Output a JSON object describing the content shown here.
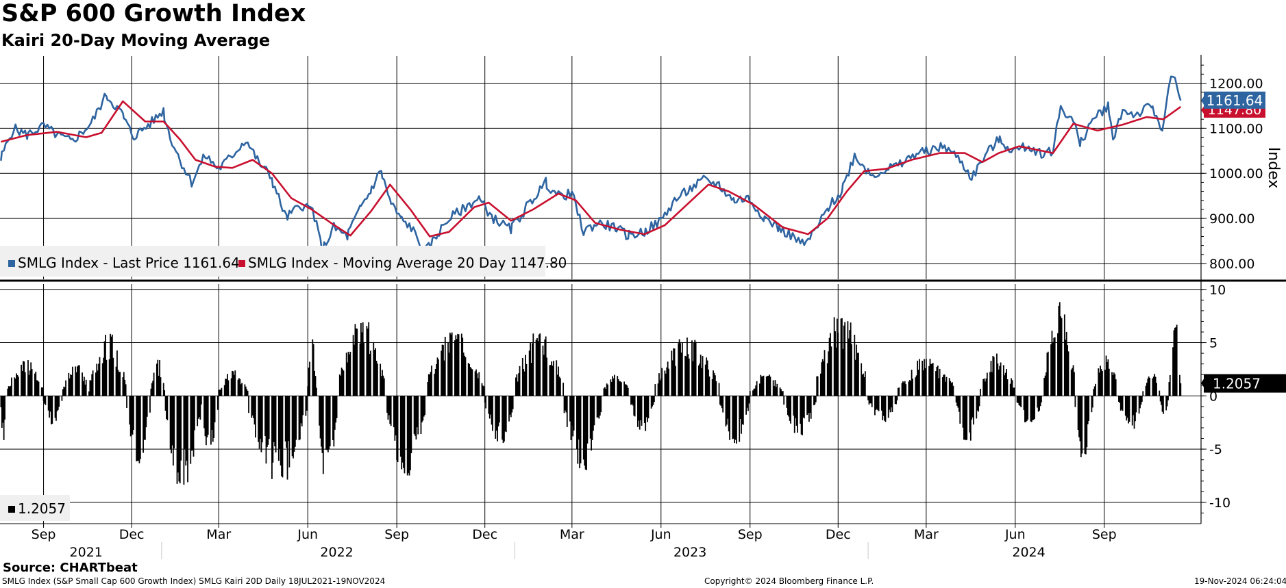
{
  "header": {
    "title": "S&P 600 Growth Index",
    "subtitle": "Kairi 20-Day Moving Average"
  },
  "footer": {
    "source": "Source: CHARTbeat",
    "description": "SMLG Index (S&P Small Cap 600 Growth Index) SMLG Kairi 20D  Daily 18JUL2021-19NOV2024",
    "copyright": "Copyright© 2024 Bloomberg Finance L.P.",
    "timestamp": "19-Nov-2024 06:24:04"
  },
  "colors": {
    "price": "#2e64a0",
    "moving_average": "#c8102e",
    "kairi": "#000000",
    "grid": "#000000",
    "legend_bg": "#f0f0f0"
  },
  "legend": {
    "top_items": [
      {
        "label": "SMLG Index - Last Price 1161.64"
      },
      {
        "label": "SMLG Index - Moving Average 20 Day 1147.80"
      }
    ],
    "bottom_items": [
      {
        "label": "1.2057"
      }
    ]
  },
  "chart_data": [
    {
      "type": "line",
      "title": "S&P 600 Growth Index",
      "ylabel": "Index",
      "ylim": [
        765,
        1260
      ],
      "yticks": [
        "800.00",
        "900.00",
        "1000.00",
        "1100.00",
        "1200.00"
      ],
      "xlim": [
        "2021-07-18",
        "2024-12-10"
      ],
      "series": [
        {
          "name": "SMLG Index - Last Price",
          "last_value": "1161.64",
          "points": [
            [
              "2021-07-19",
              1030
            ],
            [
              "2021-08-01",
              1100
            ],
            [
              "2021-08-15",
              1085
            ],
            [
              "2021-09-01",
              1105
            ],
            [
              "2021-09-15",
              1085
            ],
            [
              "2021-10-01",
              1070
            ],
            [
              "2021-10-20",
              1110
            ],
            [
              "2021-11-05",
              1175
            ],
            [
              "2021-11-22",
              1130
            ],
            [
              "2021-12-03",
              1080
            ],
            [
              "2021-12-20",
              1110
            ],
            [
              "2022-01-03",
              1140
            ],
            [
              "2022-01-10",
              1080
            ],
            [
              "2022-01-20",
              1030
            ],
            [
              "2022-02-01",
              980
            ],
            [
              "2022-02-15",
              1040
            ],
            [
              "2022-03-01",
              1010
            ],
            [
              "2022-03-15",
              1040
            ],
            [
              "2022-03-29",
              1075
            ],
            [
              "2022-04-10",
              1030
            ],
            [
              "2022-04-25",
              990
            ],
            [
              "2022-05-10",
              900
            ],
            [
              "2022-05-25",
              930
            ],
            [
              "2022-06-06",
              920
            ],
            [
              "2022-06-16",
              830
            ],
            [
              "2022-06-28",
              880
            ],
            [
              "2022-07-12",
              860
            ],
            [
              "2022-07-25",
              920
            ],
            [
              "2022-08-05",
              960
            ],
            [
              "2022-08-16",
              1008
            ],
            [
              "2022-08-25",
              940
            ],
            [
              "2022-09-05",
              900
            ],
            [
              "2022-09-16",
              880
            ],
            [
              "2022-09-30",
              825
            ],
            [
              "2022-10-12",
              860
            ],
            [
              "2022-10-25",
              900
            ],
            [
              "2022-11-08",
              920
            ],
            [
              "2022-11-25",
              945
            ],
            [
              "2022-12-10",
              900
            ],
            [
              "2022-12-28",
              875
            ],
            [
              "2023-01-12",
              920
            ],
            [
              "2023-02-02",
              980
            ],
            [
              "2023-02-15",
              950
            ],
            [
              "2023-03-01",
              955
            ],
            [
              "2023-03-13",
              870
            ],
            [
              "2023-03-28",
              890
            ],
            [
              "2023-04-15",
              880
            ],
            [
              "2023-04-28",
              862
            ],
            [
              "2023-05-15",
              870
            ],
            [
              "2023-06-01",
              895
            ],
            [
              "2023-06-15",
              940
            ],
            [
              "2023-07-01",
              965
            ],
            [
              "2023-07-15",
              985
            ],
            [
              "2023-07-31",
              975
            ],
            [
              "2023-08-15",
              940
            ],
            [
              "2023-08-30",
              945
            ],
            [
              "2023-09-15",
              905
            ],
            [
              "2023-09-30",
              880
            ],
            [
              "2023-10-15",
              860
            ],
            [
              "2023-10-27",
              840
            ],
            [
              "2023-11-08",
              875
            ],
            [
              "2023-11-20",
              920
            ],
            [
              "2023-12-05",
              960
            ],
            [
              "2023-12-18",
              1040
            ],
            [
              "2024-01-05",
              995
            ],
            [
              "2024-01-20",
              1010
            ],
            [
              "2024-02-05",
              1020
            ],
            [
              "2024-02-20",
              1045
            ],
            [
              "2024-03-05",
              1050
            ],
            [
              "2024-03-20",
              1060
            ],
            [
              "2024-04-05",
              1030
            ],
            [
              "2024-04-17",
              990
            ],
            [
              "2024-05-01",
              1040
            ],
            [
              "2024-05-15",
              1075
            ],
            [
              "2024-05-30",
              1050
            ],
            [
              "2024-06-15",
              1060
            ],
            [
              "2024-06-28",
              1045
            ],
            [
              "2024-07-10",
              1050
            ],
            [
              "2024-07-18",
              1150
            ],
            [
              "2024-08-02",
              1110
            ],
            [
              "2024-08-07",
              1060
            ],
            [
              "2024-08-20",
              1120
            ],
            [
              "2024-09-05",
              1150
            ],
            [
              "2024-09-10",
              1080
            ],
            [
              "2024-09-20",
              1140
            ],
            [
              "2024-10-05",
              1130
            ],
            [
              "2024-10-20",
              1150
            ],
            [
              "2024-10-31",
              1100
            ],
            [
              "2024-11-06",
              1180
            ],
            [
              "2024-11-11",
              1218
            ],
            [
              "2024-11-15",
              1185
            ],
            [
              "2024-11-19",
              1161.64
            ]
          ]
        },
        {
          "name": "SMLG Index - Moving Average 20 Day",
          "last_value": "1147.80",
          "points": [
            [
              "2021-07-19",
              1070
            ],
            [
              "2021-08-15",
              1085
            ],
            [
              "2021-09-15",
              1092
            ],
            [
              "2021-10-15",
              1080
            ],
            [
              "2021-10-31",
              1090
            ],
            [
              "2021-11-22",
              1160
            ],
            [
              "2021-12-15",
              1115
            ],
            [
              "2022-01-03",
              1115
            ],
            [
              "2022-01-20",
              1075
            ],
            [
              "2022-02-05",
              1030
            ],
            [
              "2022-02-25",
              1015
            ],
            [
              "2022-03-15",
              1012
            ],
            [
              "2022-04-05",
              1030
            ],
            [
              "2022-04-25",
              1000
            ],
            [
              "2022-05-15",
              945
            ],
            [
              "2022-06-05",
              920
            ],
            [
              "2022-06-25",
              890
            ],
            [
              "2022-07-15",
              862
            ],
            [
              "2022-08-05",
              915
            ],
            [
              "2022-08-25",
              975
            ],
            [
              "2022-09-15",
              920
            ],
            [
              "2022-10-05",
              860
            ],
            [
              "2022-10-25",
              870
            ],
            [
              "2022-11-20",
              925
            ],
            [
              "2022-12-05",
              935
            ],
            [
              "2022-12-28",
              895
            ],
            [
              "2023-01-20",
              920
            ],
            [
              "2023-02-15",
              955
            ],
            [
              "2023-03-05",
              940
            ],
            [
              "2023-03-25",
              890
            ],
            [
              "2023-04-20",
              875
            ],
            [
              "2023-05-15",
              865
            ],
            [
              "2023-06-05",
              885
            ],
            [
              "2023-06-25",
              925
            ],
            [
              "2023-07-20",
              975
            ],
            [
              "2023-08-10",
              960
            ],
            [
              "2023-09-05",
              930
            ],
            [
              "2023-10-05",
              880
            ],
            [
              "2023-10-31",
              865
            ],
            [
              "2023-11-20",
              900
            ],
            [
              "2023-12-10",
              960
            ],
            [
              "2023-12-28",
              1005
            ],
            [
              "2024-01-20",
              1010
            ],
            [
              "2024-02-15",
              1030
            ],
            [
              "2024-03-15",
              1045
            ],
            [
              "2024-04-10",
              1045
            ],
            [
              "2024-04-28",
              1025
            ],
            [
              "2024-05-15",
              1045
            ],
            [
              "2024-06-05",
              1060
            ],
            [
              "2024-07-10",
              1045
            ],
            [
              "2024-07-31",
              1110
            ],
            [
              "2024-08-25",
              1095
            ],
            [
              "2024-09-20",
              1108
            ],
            [
              "2024-10-15",
              1125
            ],
            [
              "2024-11-01",
              1120
            ],
            [
              "2024-11-19",
              1147.8
            ]
          ]
        }
      ]
    },
    {
      "type": "bar",
      "title": "Kairi 20-Day Moving Average",
      "ylim": [
        -12,
        10.5
      ],
      "yticks": [
        "10",
        "5",
        "0",
        "-5",
        "-10"
      ],
      "last_value": "1.2057",
      "segments": [
        {
          "start": "2021-07-19",
          "end": "2021-07-24",
          "peak": -4.5
        },
        {
          "start": "2021-07-26",
          "end": "2021-08-31",
          "peak": 3.5
        },
        {
          "start": "2021-09-01",
          "end": "2021-09-20",
          "peak": -2.7
        },
        {
          "start": "2021-09-21",
          "end": "2021-10-18",
          "peak": 3.0
        },
        {
          "start": "2021-10-19",
          "end": "2021-11-25",
          "peak": 6.0
        },
        {
          "start": "2021-11-26",
          "end": "2021-12-20",
          "peak": -6.5
        },
        {
          "start": "2021-12-21",
          "end": "2022-01-04",
          "peak": 3.5
        },
        {
          "start": "2022-01-05",
          "end": "2022-02-10",
          "peak": -9.0
        },
        {
          "start": "2022-02-11",
          "end": "2022-02-28",
          "peak": -5.5
        },
        {
          "start": "2022-03-01",
          "end": "2022-03-31",
          "peak": 2.5
        },
        {
          "start": "2022-04-01",
          "end": "2022-05-31",
          "peak": -8.0
        },
        {
          "start": "2022-06-01",
          "end": "2022-06-10",
          "peak": 5.5
        },
        {
          "start": "2022-06-11",
          "end": "2022-07-01",
          "peak": -9.0
        },
        {
          "start": "2022-07-02",
          "end": "2022-08-20",
          "peak": 7.0
        },
        {
          "start": "2022-08-21",
          "end": "2022-09-30",
          "peak": -7.5
        },
        {
          "start": "2022-10-01",
          "end": "2022-11-30",
          "peak": 6.0
        },
        {
          "start": "2022-12-01",
          "end": "2022-12-31",
          "peak": -4.5
        },
        {
          "start": "2023-01-01",
          "end": "2023-02-20",
          "peak": 6.0
        },
        {
          "start": "2023-02-21",
          "end": "2023-03-31",
          "peak": -7.0
        },
        {
          "start": "2023-04-01",
          "end": "2023-04-30",
          "peak": 2.0
        },
        {
          "start": "2023-05-01",
          "end": "2023-05-25",
          "peak": -3.5
        },
        {
          "start": "2023-05-26",
          "end": "2023-07-31",
          "peak": 5.5
        },
        {
          "start": "2023-08-01",
          "end": "2023-08-31",
          "peak": -4.5
        },
        {
          "start": "2023-09-01",
          "end": "2023-10-05",
          "peak": 2.0
        },
        {
          "start": "2023-10-06",
          "end": "2023-11-08",
          "peak": -3.8
        },
        {
          "start": "2023-11-09",
          "end": "2023-12-31",
          "peak": 7.5
        },
        {
          "start": "2024-01-01",
          "end": "2024-01-31",
          "peak": -2.5
        },
        {
          "start": "2024-02-01",
          "end": "2024-03-31",
          "peak": 3.5
        },
        {
          "start": "2024-04-01",
          "end": "2024-04-25",
          "peak": -4.3
        },
        {
          "start": "2024-04-26",
          "end": "2024-05-31",
          "peak": 4.0
        },
        {
          "start": "2024-06-01",
          "end": "2024-06-30",
          "peak": -2.5
        },
        {
          "start": "2024-07-01",
          "end": "2024-08-01",
          "peak": 9.0
        },
        {
          "start": "2024-08-02",
          "end": "2024-08-20",
          "peak": -5.8
        },
        {
          "start": "2024-08-21",
          "end": "2024-09-15",
          "peak": 4.0
        },
        {
          "start": "2024-09-16",
          "end": "2024-10-10",
          "peak": -3.2
        },
        {
          "start": "2024-10-11",
          "end": "2024-10-28",
          "peak": 2.5
        },
        {
          "start": "2024-10-29",
          "end": "2024-11-06",
          "peak": -2.4
        },
        {
          "start": "2024-11-07",
          "end": "2024-11-19",
          "peak": 6.8
        }
      ]
    }
  ],
  "x_axis": {
    "months": [
      {
        "label": "Sep",
        "date": "2021-09-01"
      },
      {
        "label": "Dec",
        "date": "2021-12-01"
      },
      {
        "label": "Mar",
        "date": "2022-03-01"
      },
      {
        "label": "Jun",
        "date": "2022-06-01"
      },
      {
        "label": "Sep",
        "date": "2022-09-01"
      },
      {
        "label": "Dec",
        "date": "2022-12-01"
      },
      {
        "label": "Mar",
        "date": "2023-03-01"
      },
      {
        "label": "Jun",
        "date": "2023-06-01"
      },
      {
        "label": "Sep",
        "date": "2023-09-01"
      },
      {
        "label": "Dec",
        "date": "2023-12-01"
      },
      {
        "label": "Mar",
        "date": "2024-03-01"
      },
      {
        "label": "Jun",
        "date": "2024-06-01"
      },
      {
        "label": "Sep",
        "date": "2024-09-01"
      }
    ],
    "years": [
      {
        "label": "2021",
        "date": "2021-10-15"
      },
      {
        "label": "2022",
        "date": "2022-07-01"
      },
      {
        "label": "2023",
        "date": "2023-07-01"
      },
      {
        "label": "2024",
        "date": "2024-06-15"
      }
    ],
    "year_boundaries": [
      "2022-01-01",
      "2023-01-01",
      "2024-01-01"
    ]
  }
}
